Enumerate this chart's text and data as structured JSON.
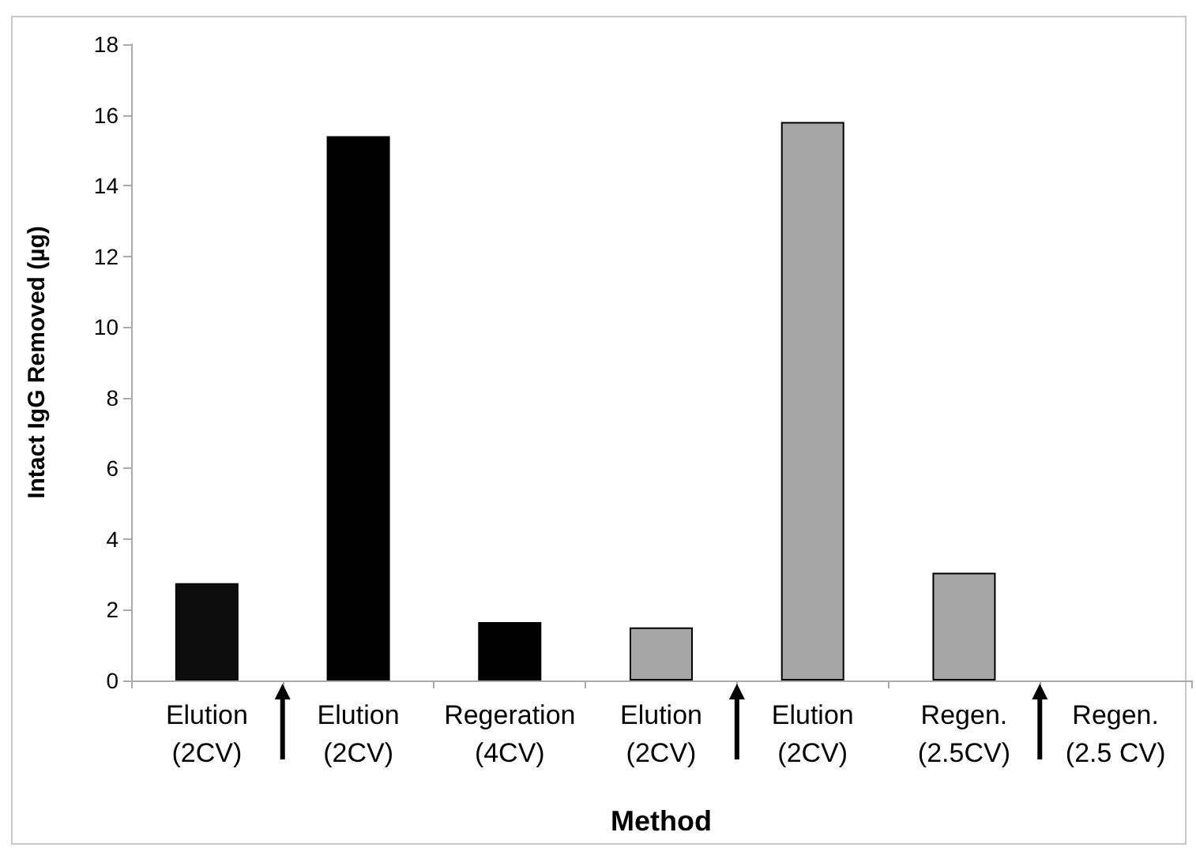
{
  "chart_data": {
    "type": "bar",
    "xlabel": "Method",
    "ylabel": "Intact IgG Removed (µg)",
    "categories": [
      "Elution\n(2CV)",
      "Elution\n(2CV)",
      "Regeration\n(4CV)",
      "Elution\n(2CV)",
      "Elution\n(2CV)",
      "Regen.\n(2.5CV)",
      "Regen.\n(2.5 CV)"
    ],
    "values": [
      2.75,
      15.4,
      1.65,
      1.5,
      15.8,
      3.05,
      null
    ],
    "colors": [
      "#0d0d0d",
      "#000000",
      "#000000",
      "#a6a6a6",
      "#a6a6a6",
      "#a6a6a6",
      "#a6a6a6"
    ],
    "ylim": [
      0,
      18
    ],
    "yticks": [
      0,
      2,
      4,
      6,
      8,
      10,
      12,
      14,
      16,
      18
    ],
    "grid": false
  }
}
